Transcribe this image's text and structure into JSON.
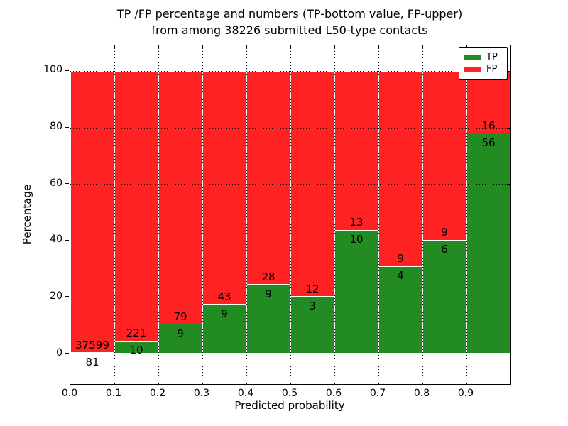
{
  "title": {
    "line1": "TP /FP percentage and numbers (TP-bottom value, FP-upper)",
    "line2": "from among 38226 submitted L50-type contacts"
  },
  "axes": {
    "xlabel": "Predicted probability",
    "ylabel": "Percentage",
    "x_tick_labels": [
      "0.0",
      "0.1",
      "0.2",
      "0.3",
      "0.4",
      "0.5",
      "0.6",
      "0.7",
      "0.8",
      "0.9"
    ],
    "y_tick_labels": [
      "0",
      "20",
      "40",
      "60",
      "80",
      "100"
    ],
    "y_tick_values": [
      0,
      20,
      40,
      60,
      80,
      100
    ]
  },
  "legend": {
    "items": [
      {
        "label": "TP",
        "color": "#228b22"
      },
      {
        "label": "FP",
        "color": "#ff2222"
      }
    ]
  },
  "colors": {
    "tp": "#228b22",
    "fp": "#ff2222",
    "frame": "#000000",
    "background": "#ffffff"
  },
  "chart_data": {
    "type": "bar",
    "stacked": true,
    "title": "TP /FP percentage and numbers (TP-bottom value, FP-upper) from among 38226 submitted L50-type contacts",
    "total_submitted_contacts": 38226,
    "xlabel": "Predicted probability",
    "ylabel": "Percentage",
    "xlim": [
      0.0,
      1.0
    ],
    "ylim": [
      0,
      100
    ],
    "bin_width": 0.1,
    "grid": "dotted",
    "legend_position": "upper right",
    "categories": [
      "0.0-0.1",
      "0.1-0.2",
      "0.2-0.3",
      "0.3-0.4",
      "0.4-0.5",
      "0.5-0.6",
      "0.6-0.7",
      "0.7-0.8",
      "0.8-0.9",
      "0.9-1.0"
    ],
    "series": [
      {
        "name": "TP",
        "color": "#228b22",
        "counts": [
          81,
          10,
          9,
          9,
          9,
          3,
          10,
          4,
          6,
          56
        ],
        "percent": [
          0.21,
          4.33,
          10.23,
          17.31,
          24.32,
          20.0,
          43.48,
          30.77,
          40.0,
          77.78
        ]
      },
      {
        "name": "FP",
        "color": "#ff2222",
        "counts": [
          37599,
          221,
          79,
          43,
          28,
          12,
          13,
          9,
          9,
          16
        ],
        "percent": [
          99.79,
          95.67,
          89.77,
          82.69,
          75.68,
          80.0,
          56.52,
          69.23,
          60.0,
          22.22
        ]
      }
    ]
  }
}
